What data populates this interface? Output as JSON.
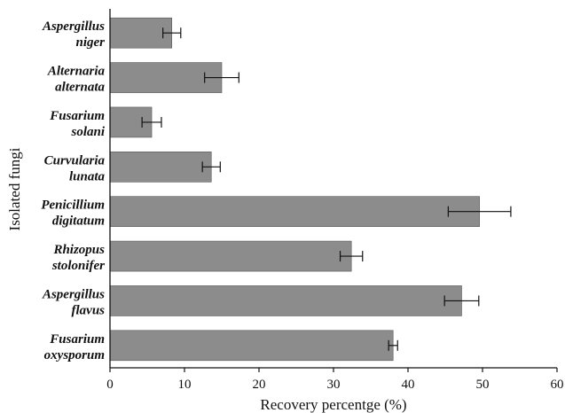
{
  "chart_data": {
    "type": "bar",
    "orientation": "horizontal",
    "xlabel": "Recovery percentge (%)",
    "ylabel": "Isolated fungi",
    "xlim": [
      0,
      60
    ],
    "xticks": [
      0,
      10,
      20,
      30,
      40,
      50,
      60
    ],
    "grid": false,
    "bar_color": "#8c8c8c",
    "categories": [
      [
        "Aspergillus",
        "niger"
      ],
      [
        "Alternaria",
        "alternata"
      ],
      [
        "Fusarium",
        "solani"
      ],
      [
        "Curvularia",
        "lunata"
      ],
      [
        "Penicillium",
        "digitatum"
      ],
      [
        "Rhizopus",
        "stolonifer"
      ],
      [
        "Aspergillus",
        "flavus"
      ],
      [
        "Fusarium",
        "oxysporum"
      ]
    ],
    "values": [
      8.3,
      15.0,
      5.6,
      13.6,
      49.6,
      32.4,
      47.2,
      38.0
    ],
    "errors": [
      1.2,
      2.3,
      1.3,
      1.2,
      4.2,
      1.5,
      2.3,
      0.6
    ]
  }
}
